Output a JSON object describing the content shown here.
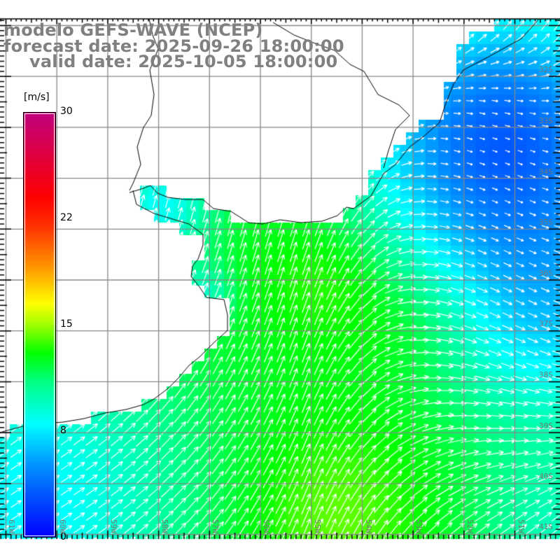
{
  "title": {
    "line1": "modelo GEFS-WAVE (NCEP)",
    "line2": "forecast date: 2025-09-26 18:00:00",
    "line3": "valid date: 2025-10-05 18:00:00"
  },
  "colorbar": {
    "unit": "[m/s]",
    "ticks": [
      "30",
      "22",
      "15",
      "8",
      "0"
    ],
    "min": 0,
    "max": 30
  },
  "lat_labels": [
    "32S",
    "33S",
    "34S",
    "35S",
    "36S",
    "37S",
    "38S",
    "39S",
    "40S",
    "41S"
  ],
  "lon_labels": [
    "61W",
    "60W",
    "59W",
    "58W",
    "57W",
    "56W",
    "55W",
    "54W",
    "53W",
    "52W",
    "51W"
  ],
  "colors": {
    "grid": "#888888",
    "label": "#808080",
    "coast": "#000000",
    "arrow": "#ffffff"
  }
}
